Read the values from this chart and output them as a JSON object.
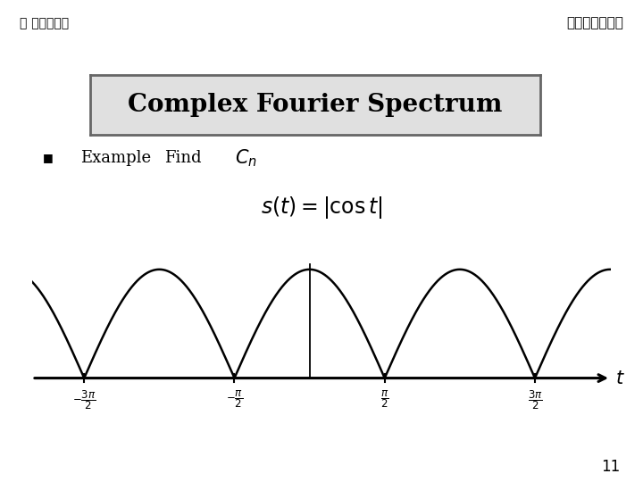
{
  "title": "Complex Fourier Spectrum",
  "header_right": "전자통신연구실",
  "header_left": "충북대학교",
  "example_text": "Example   Find",
  "page_number": "11",
  "x_tick_vals": [
    -4.71238898038469,
    -1.5707963267948966,
    1.5707963267948966,
    4.71238898038469
  ],
  "bg_color": "#ffffff",
  "curve_color": "#000000",
  "box_fill": "#e0e0e0",
  "x_range": [
    -5.8,
    6.3
  ],
  "y_range": [
    -0.18,
    1.35
  ]
}
